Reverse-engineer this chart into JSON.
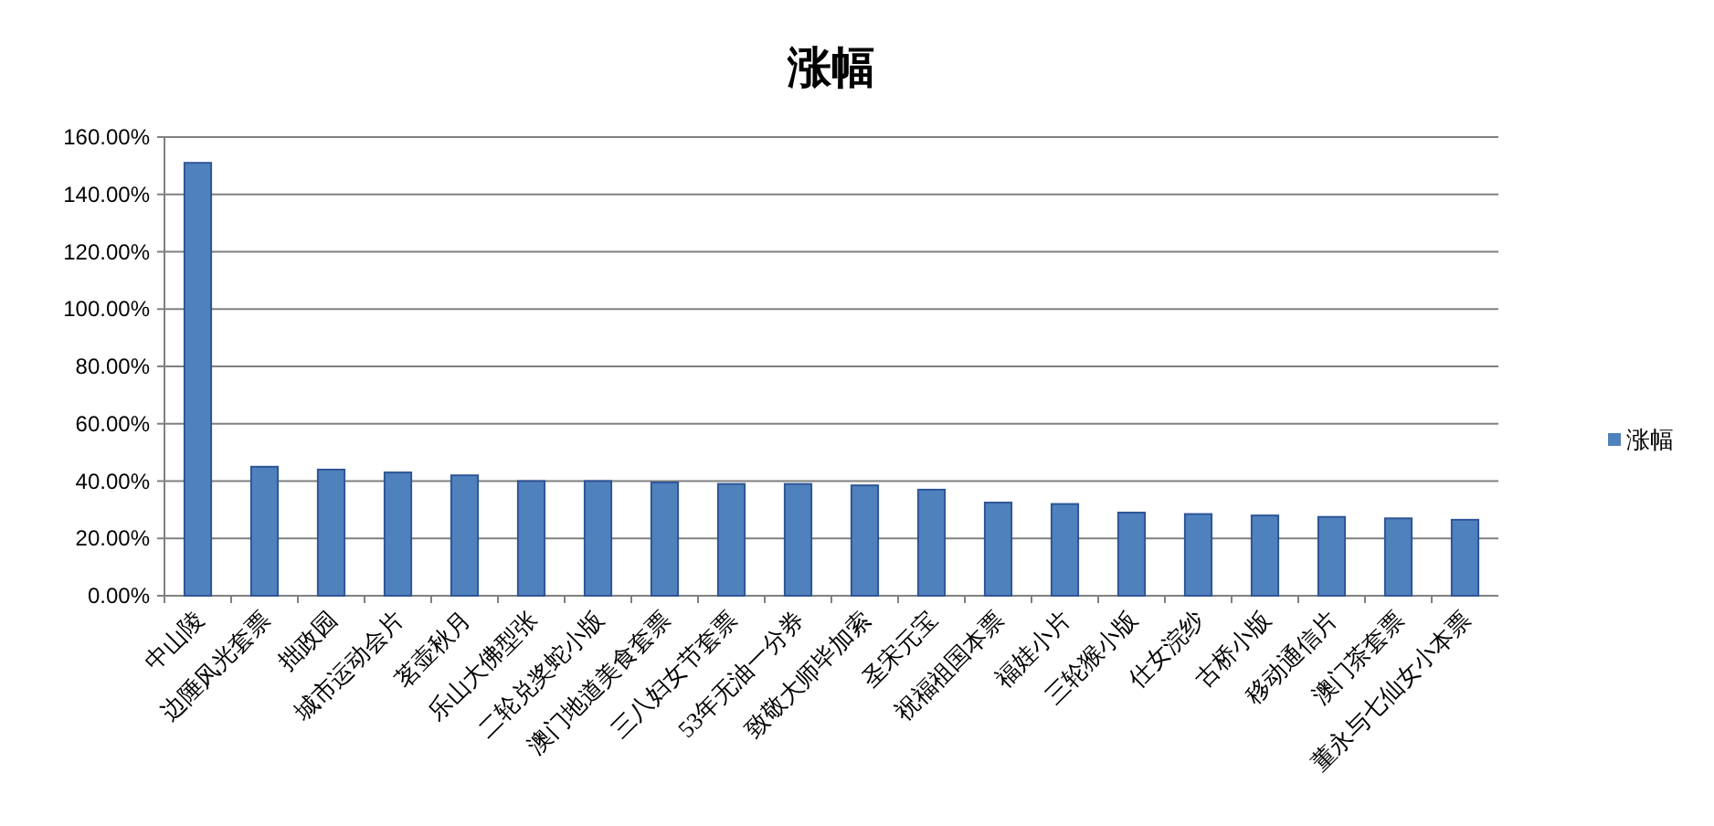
{
  "chart_data": {
    "type": "bar",
    "title": "涨幅",
    "categories": [
      "中山陵",
      "边陲风光套票",
      "拙政园",
      "城市运动会片",
      "茗壶秋月",
      "乐山大佛型张",
      "二轮兑奖蛇小版",
      "澳门地道美食套票",
      "三八妇女节套票",
      "53年无油一分券",
      "致敬大师毕加索",
      "圣宋元宝",
      "祝福祖国本票",
      "福娃小片",
      "三轮猴小版",
      "仕女浣纱",
      "古桥小版",
      "移动通信片",
      "澳门茶套票",
      "董永与七仙女小本票"
    ],
    "series": [
      {
        "name": "涨幅",
        "color": "#4f81bd",
        "values": [
          151,
          45,
          44,
          43,
          42,
          40,
          40,
          39.5,
          39,
          39,
          38.5,
          37,
          32.5,
          32,
          29,
          28.5,
          28,
          27.5,
          27,
          26.5
        ]
      }
    ],
    "ylim": [
      0,
      160
    ],
    "yticks": [
      {
        "value": 0,
        "label": "0.00%"
      },
      {
        "value": 20,
        "label": "20.00%"
      },
      {
        "value": 40,
        "label": "40.00%"
      },
      {
        "value": 60,
        "label": "60.00%"
      },
      {
        "value": 80,
        "label": "80.00%"
      },
      {
        "value": 100,
        "label": "100.00%"
      },
      {
        "value": 120,
        "label": "120.00%"
      },
      {
        "value": 140,
        "label": "140.00%"
      },
      {
        "value": 160,
        "label": "160.00%"
      }
    ],
    "grid": "y",
    "legend": "right"
  }
}
